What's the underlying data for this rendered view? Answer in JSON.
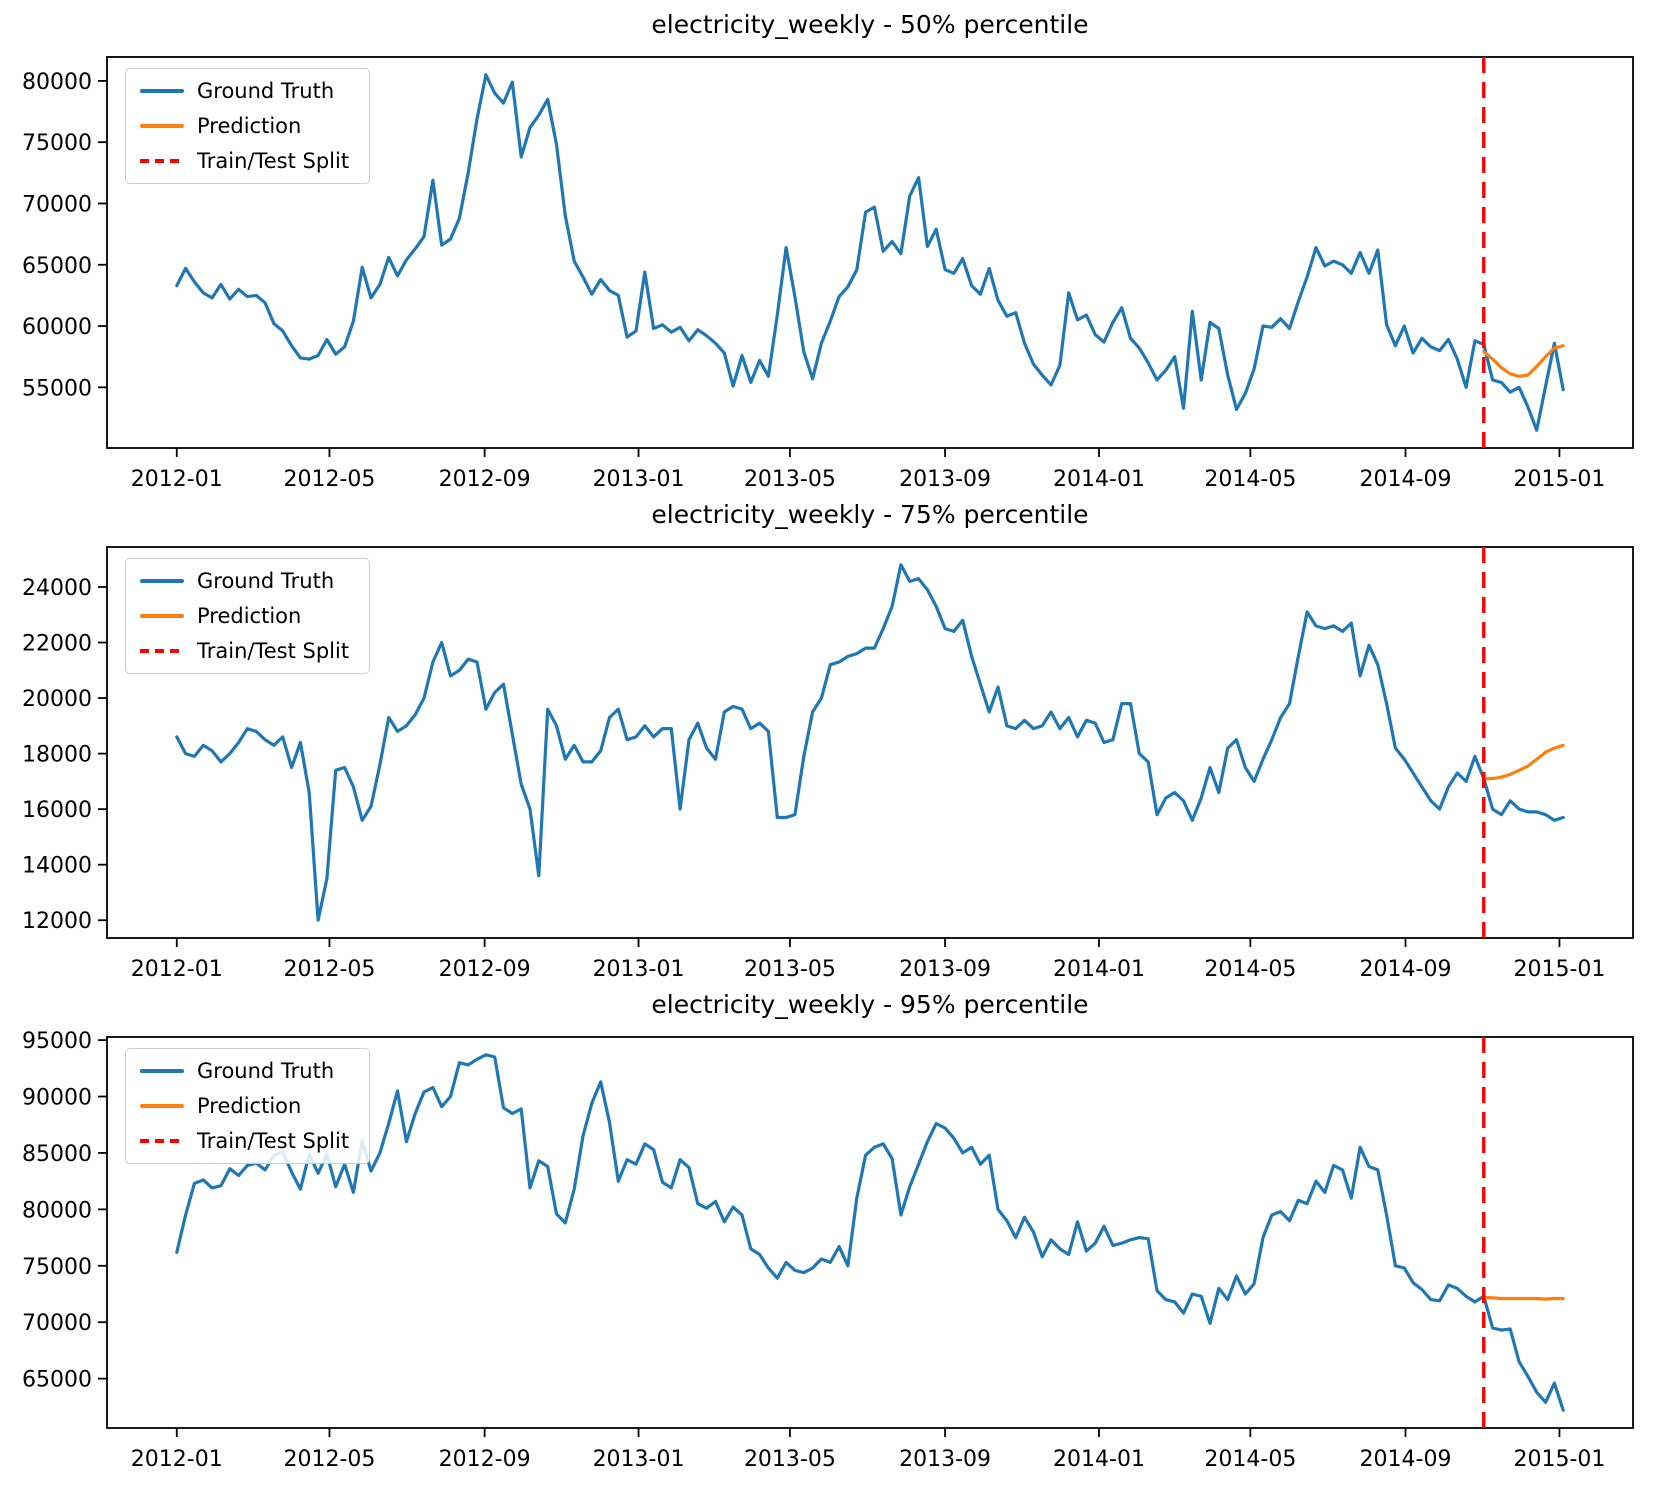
{
  "colors": {
    "background": "#ffffff",
    "text": "#000000",
    "ground_truth": "#1f77b4",
    "prediction": "#ff7f0e",
    "split": "#ff0000"
  },
  "legend": {
    "ground_truth": "Ground Truth",
    "prediction": "Prediction",
    "split": "Train/Test Split"
  },
  "chart_data": [
    {
      "type": "line",
      "title": "electricity_weekly - 50% percentile",
      "xlabel": "",
      "ylabel": "",
      "grid": false,
      "legend_position": "upper left",
      "x_tick_labels": [
        "2012-01",
        "2012-05",
        "2012-09",
        "2013-01",
        "2013-05",
        "2013-09",
        "2014-01",
        "2014-05",
        "2014-09",
        "2015-01"
      ],
      "x_tick_weeks": [
        0,
        17.29,
        34.86,
        52.29,
        69.43,
        87.0,
        104.43,
        121.57,
        139.14,
        156.57
      ],
      "xlim": [
        -7.9,
        164.9
      ],
      "ylim": [
        50050,
        81950
      ],
      "yticks": [
        55000,
        60000,
        65000,
        70000,
        75000,
        80000
      ],
      "split_week": 148,
      "series": [
        {
          "name": "Ground Truth",
          "color": "#1f77b4",
          "x_start": 0,
          "values": [
            63300,
            64700,
            63600,
            62700,
            62300,
            63400,
            62200,
            63000,
            62400,
            62500,
            61900,
            60200,
            59600,
            58400,
            57400,
            57300,
            57600,
            58900,
            57700,
            58300,
            60400,
            64800,
            62300,
            63400,
            65600,
            64100,
            65400,
            66300,
            67300,
            71900,
            66600,
            67100,
            68800,
            72500,
            76900,
            80500,
            79000,
            78200,
            79900,
            73800,
            76200,
            77200,
            78500,
            74800,
            69000,
            65300,
            64000,
            62600,
            63800,
            62900,
            62500,
            59100,
            59600,
            64400,
            59800,
            60100,
            59500,
            59900,
            58800,
            59700,
            59200,
            58600,
            57800,
            55100,
            57600,
            55400,
            57200,
            55900,
            60900,
            66400,
            62400,
            57900,
            55700,
            58600,
            60400,
            62400,
            63200,
            64600,
            69300,
            69700,
            66100,
            66900,
            65900,
            70600,
            72100,
            66500,
            67900,
            64600,
            64300,
            65500,
            63300,
            62600,
            64700,
            62100,
            60800,
            61100,
            58600,
            56900,
            56000,
            55200,
            56800,
            62700,
            60500,
            60900,
            59300,
            58700,
            60300,
            61500,
            59000,
            58200,
            57000,
            55600,
            56400,
            57500,
            53300,
            61200,
            55600,
            60300,
            59800,
            56000,
            53200,
            54500,
            56500,
            60000,
            59900,
            60600,
            59800,
            62000,
            64000,
            66400,
            64900,
            65300,
            65000,
            64300,
            66000,
            64300,
            66200,
            60100,
            58400,
            60000,
            57800,
            59000,
            58300,
            58000,
            58900,
            57300,
            55000,
            58800,
            58500,
            55600,
            55400,
            54600,
            55000,
            53400,
            51500,
            55100,
            58600,
            54800
          ]
        },
        {
          "name": "Prediction",
          "color": "#ff7f0e",
          "x_start": 148,
          "values": [
            57900,
            57300,
            56600,
            56100,
            55900,
            56000,
            56700,
            57500,
            58200,
            58400
          ]
        }
      ]
    },
    {
      "type": "line",
      "title": "electricity_weekly - 75% percentile",
      "xlabel": "",
      "ylabel": "",
      "grid": false,
      "legend_position": "upper left",
      "x_tick_labels": [
        "2012-01",
        "2012-05",
        "2012-09",
        "2013-01",
        "2013-05",
        "2013-09",
        "2014-01",
        "2014-05",
        "2014-09",
        "2015-01"
      ],
      "x_tick_weeks": [
        0,
        17.29,
        34.86,
        52.29,
        69.43,
        87.0,
        104.43,
        121.57,
        139.14,
        156.57
      ],
      "xlim": [
        -7.9,
        164.9
      ],
      "ylim": [
        11360,
        25440
      ],
      "yticks": [
        12000,
        14000,
        16000,
        18000,
        20000,
        22000,
        24000
      ],
      "split_week": 148,
      "series": [
        {
          "name": "Ground Truth",
          "color": "#1f77b4",
          "x_start": 0,
          "values": [
            18600,
            18000,
            17900,
            18300,
            18100,
            17700,
            18000,
            18400,
            18900,
            18800,
            18500,
            18300,
            18600,
            17500,
            18400,
            16600,
            12000,
            13500,
            17400,
            17500,
            16800,
            15600,
            16100,
            17600,
            19300,
            18800,
            19000,
            19400,
            20000,
            21300,
            22000,
            20800,
            21000,
            21400,
            21300,
            19600,
            20200,
            20500,
            18700,
            16900,
            16000,
            13600,
            19600,
            19000,
            17800,
            18300,
            17700,
            17700,
            18100,
            19300,
            19600,
            18500,
            18600,
            19000,
            18600,
            18900,
            18900,
            16000,
            18500,
            19100,
            18200,
            17800,
            19500,
            19700,
            19600,
            18900,
            19100,
            18800,
            15700,
            15700,
            15800,
            17900,
            19500,
            20000,
            21200,
            21300,
            21500,
            21600,
            21800,
            21800,
            22500,
            23300,
            24800,
            24200,
            24300,
            23900,
            23300,
            22500,
            22400,
            22800,
            21500,
            20500,
            19500,
            20400,
            19000,
            18900,
            19200,
            18900,
            19000,
            19500,
            18900,
            19300,
            18600,
            19200,
            19100,
            18400,
            18500,
            19800,
            19800,
            18000,
            17700,
            15800,
            16400,
            16600,
            16300,
            15600,
            16400,
            17500,
            16600,
            18200,
            18500,
            17500,
            17000,
            17800,
            18500,
            19300,
            19800,
            21500,
            23100,
            22600,
            22500,
            22600,
            22400,
            22700,
            20800,
            21900,
            21200,
            19800,
            18200,
            17800,
            17300,
            16800,
            16300,
            16000,
            16800,
            17300,
            17000,
            17900,
            17100,
            16000,
            15800,
            16300,
            16000,
            15900,
            15900,
            15800,
            15600,
            15700
          ]
        },
        {
          "name": "Prediction",
          "color": "#ff7f0e",
          "x_start": 148,
          "values": [
            17100,
            17100,
            17150,
            17250,
            17400,
            17550,
            17800,
            18050,
            18200,
            18300
          ]
        }
      ]
    },
    {
      "type": "line",
      "title": "electricity_weekly - 95% percentile",
      "xlabel": "",
      "ylabel": "",
      "grid": false,
      "legend_position": "upper left",
      "x_tick_labels": [
        "2012-01",
        "2012-05",
        "2012-09",
        "2013-01",
        "2013-05",
        "2013-09",
        "2014-01",
        "2014-05",
        "2014-09",
        "2015-01"
      ],
      "x_tick_weeks": [
        0,
        17.29,
        34.86,
        52.29,
        69.43,
        87.0,
        104.43,
        121.57,
        139.14,
        156.57
      ],
      "xlim": [
        -7.9,
        164.9
      ],
      "ylim": [
        60625,
        95275
      ],
      "yticks": [
        65000,
        70000,
        75000,
        80000,
        85000,
        90000,
        95000
      ],
      "split_week": 148,
      "series": [
        {
          "name": "Ground Truth",
          "color": "#1f77b4",
          "x_start": 0,
          "values": [
            76200,
            79500,
            82300,
            82600,
            81900,
            82100,
            83600,
            83000,
            83900,
            84100,
            83500,
            84800,
            85100,
            83300,
            81800,
            84900,
            83200,
            84900,
            82000,
            84000,
            81500,
            86100,
            83400,
            85000,
            87600,
            90500,
            86000,
            88500,
            90400,
            90800,
            89100,
            90000,
            93000,
            92800,
            93300,
            93700,
            93500,
            89000,
            88500,
            88900,
            81900,
            84300,
            83800,
            79600,
            78800,
            81800,
            86500,
            89400,
            91300,
            87700,
            82500,
            84400,
            84000,
            85800,
            85300,
            82400,
            81900,
            84400,
            83700,
            80500,
            80100,
            80700,
            78900,
            80200,
            79500,
            76500,
            76000,
            74800,
            73900,
            75300,
            74600,
            74400,
            74800,
            75600,
            75300,
            76700,
            75000,
            81000,
            84800,
            85500,
            85800,
            84500,
            79500,
            82000,
            84000,
            86000,
            87600,
            87200,
            86300,
            85000,
            85500,
            84000,
            84800,
            80000,
            79000,
            77500,
            79300,
            78000,
            75800,
            77300,
            76500,
            76000,
            78900,
            76300,
            77000,
            78500,
            76800,
            77000,
            77300,
            77500,
            77400,
            72800,
            72000,
            71800,
            70800,
            72500,
            72300,
            69900,
            73000,
            72000,
            74100,
            72500,
            73400,
            77500,
            79500,
            79800,
            79000,
            80800,
            80500,
            82500,
            81500,
            83900,
            83500,
            81000,
            85500,
            83800,
            83500,
            79500,
            75000,
            74800,
            73500,
            72900,
            72000,
            71900,
            73300,
            73000,
            72300,
            71800,
            72300,
            69500,
            69300,
            69400,
            66500,
            65200,
            63800,
            62900,
            64600,
            62200
          ]
        },
        {
          "name": "Prediction",
          "color": "#ff7f0e",
          "x_start": 148,
          "values": [
            72200,
            72150,
            72100,
            72100,
            72100,
            72100,
            72100,
            72050,
            72100,
            72100
          ]
        }
      ]
    }
  ]
}
